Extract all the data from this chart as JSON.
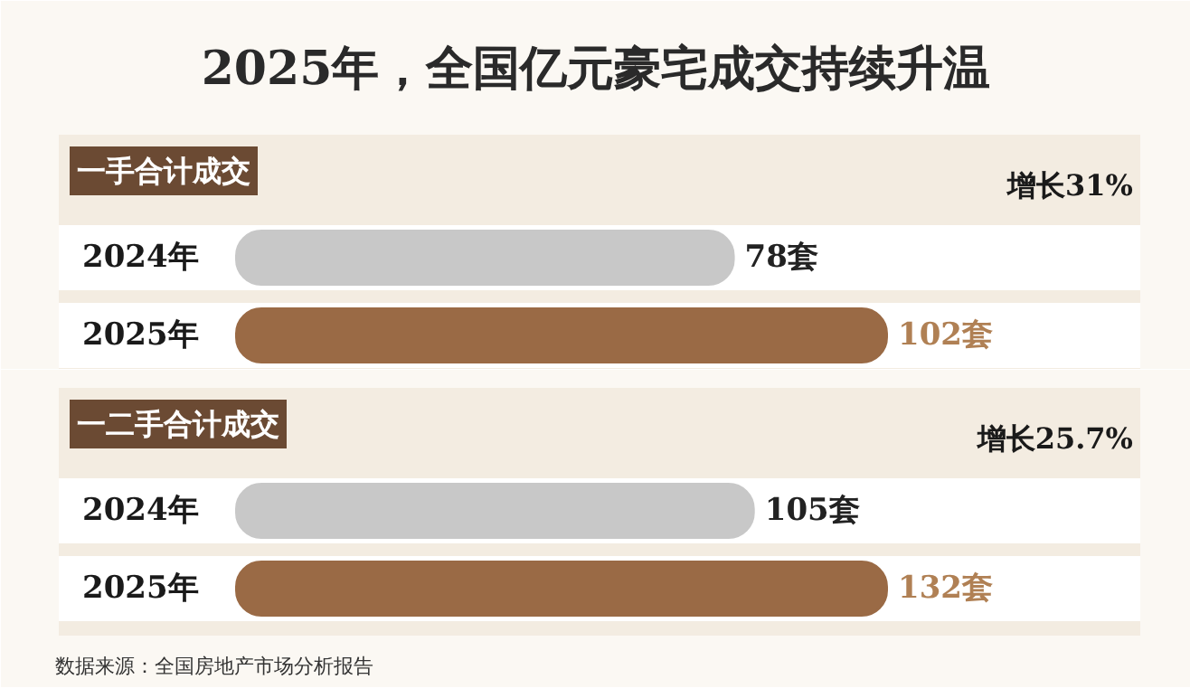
{
  "chart_data": [
    {
      "type": "bar",
      "orientation": "horizontal",
      "title": "2025年，全国亿元豪宅成交持续升温",
      "subtitle": "一手合计成交",
      "categories": [
        "2024年",
        "2025年"
      ],
      "values": [
        78,
        102
      ],
      "colors": [
        "#c8c8c8",
        "#9a6a45"
      ],
      "value_labels": [
        "78套",
        "102套"
      ],
      "annotations": [
        "增长31%"
      ]
    },
    {
      "type": "bar",
      "orientation": "horizontal",
      "subtitle": "一二手合计成交",
      "categories": [
        "2024年",
        "2025年"
      ],
      "values": [
        105,
        132
      ],
      "colors": [
        "#c8c8c8",
        "#9a6a45"
      ],
      "value_labels": [
        "105套",
        "132套"
      ],
      "annotations": [
        "增长25.7%",
        "数据来源：全国房地产市场分析报告"
      ]
    }
  ]
}
